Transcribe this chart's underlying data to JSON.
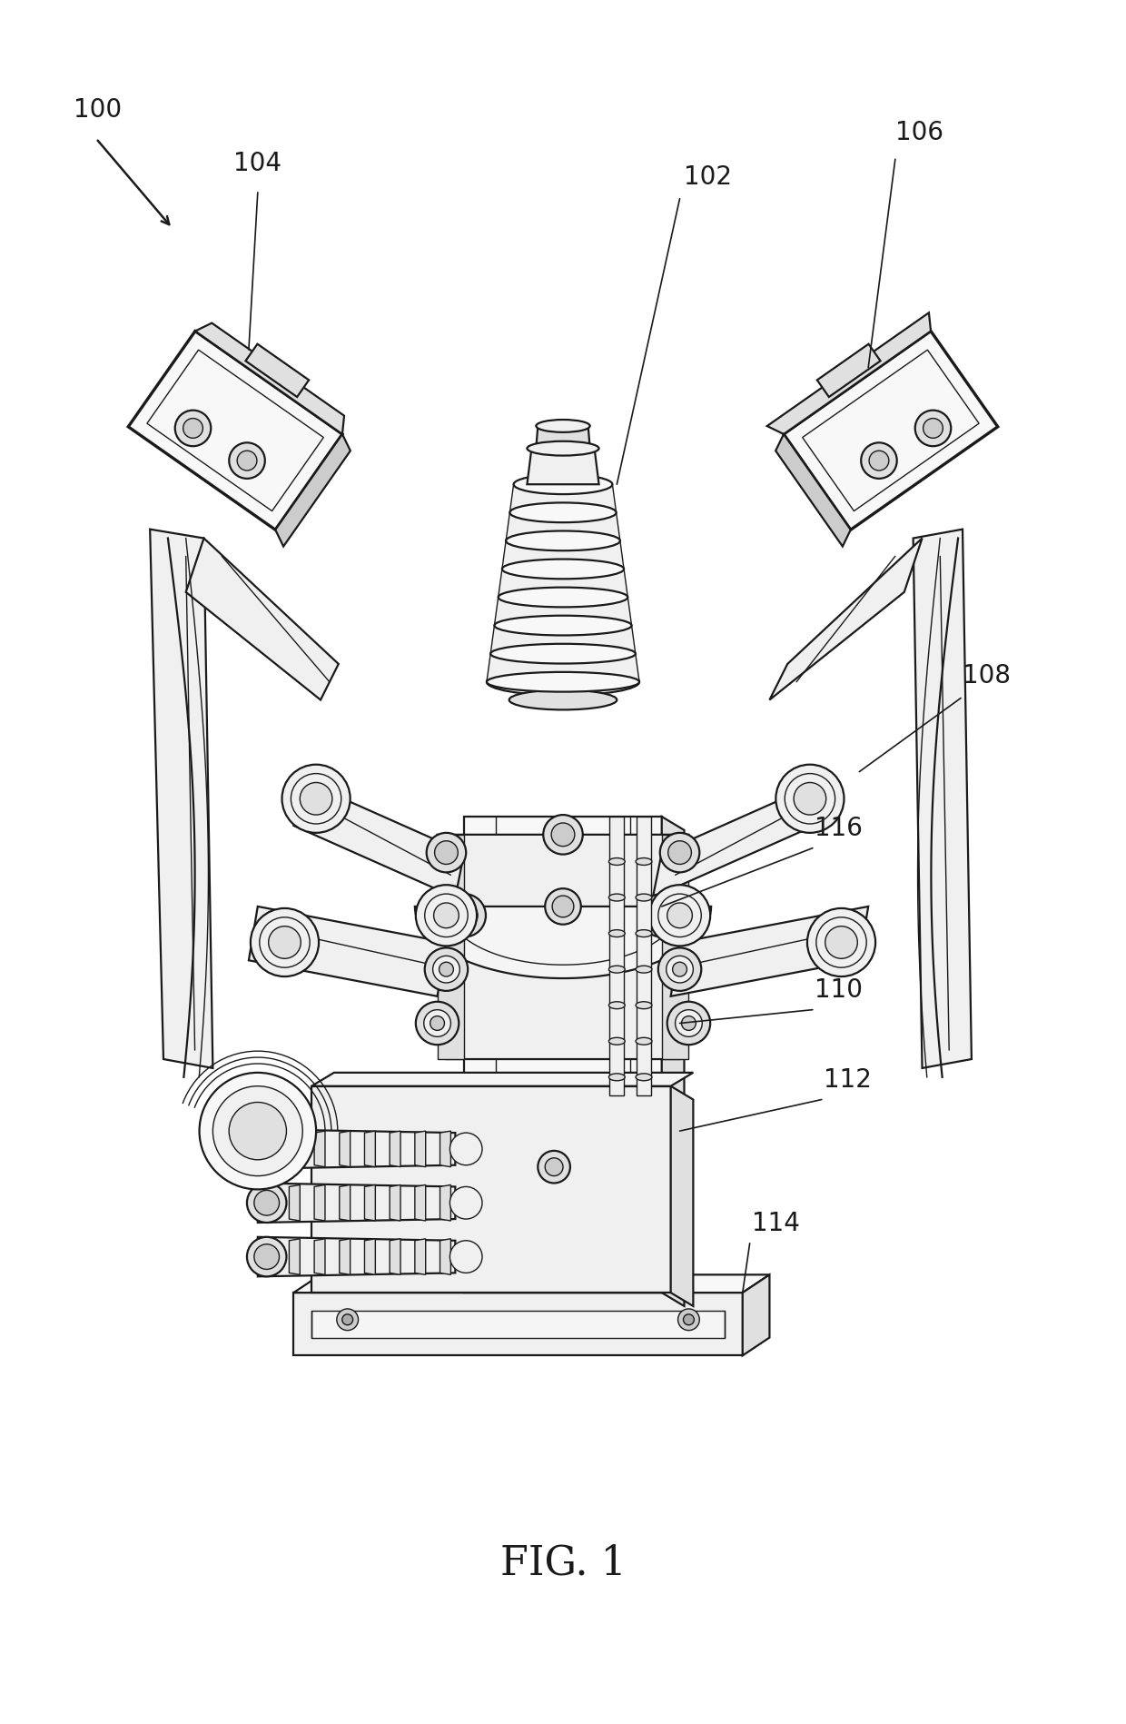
{
  "title": "FIG. 1",
  "background_color": "#ffffff",
  "line_color": "#1a1a1a",
  "fig_width": 12.4,
  "fig_height": 18.99,
  "dpi": 100,
  "title_fontsize": 32,
  "label_fontsize": 20,
  "lw_main": 1.6,
  "lw_thick": 2.4,
  "lw_thin": 1.0,
  "shade_light": "#f0f0f0",
  "shade_mid": "#e0e0e0",
  "shade_dark": "#cccccc"
}
